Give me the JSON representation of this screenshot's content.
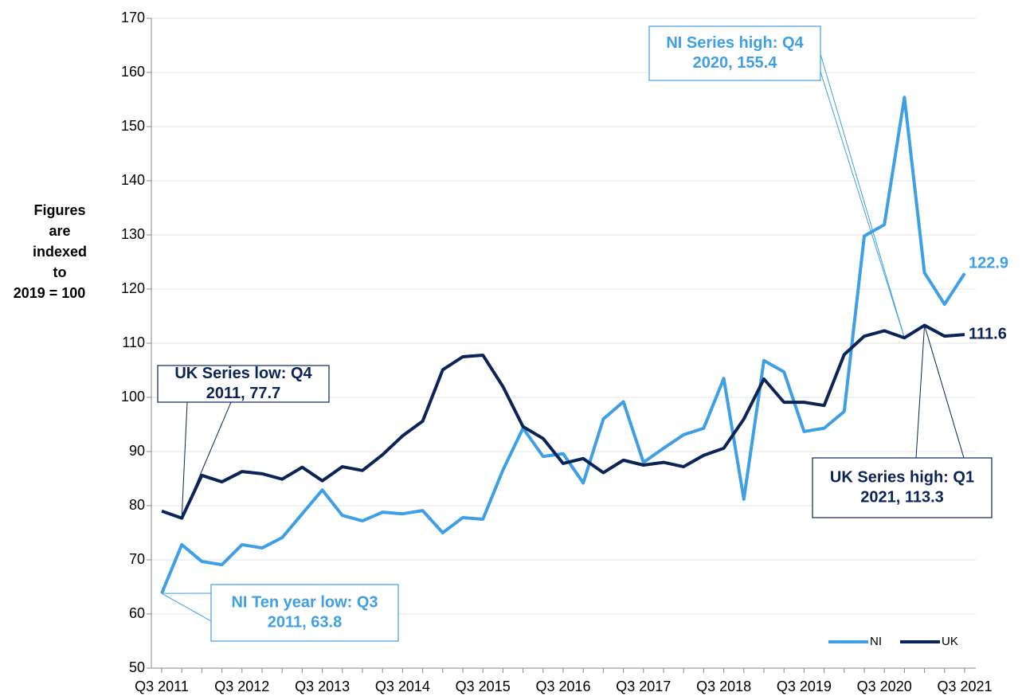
{
  "chart_data": {
    "type": "line",
    "ylabel_lines": [
      "Figures",
      "are",
      "indexed",
      "to",
      "2019 = 100"
    ],
    "categories": [
      "Q3 2011",
      null,
      null,
      null,
      "Q3 2012",
      null,
      null,
      null,
      "Q3 2013",
      null,
      null,
      null,
      "Q3 2014",
      null,
      null,
      null,
      "Q3 2015",
      null,
      null,
      null,
      "Q3 2016",
      null,
      null,
      null,
      "Q3 2017",
      null,
      null,
      null,
      "Q3 2018",
      null,
      null,
      null,
      "Q3 2019",
      null,
      null,
      null,
      "Q3 2020",
      null,
      null,
      null,
      "Q3 2021"
    ],
    "series": [
      {
        "name": "NI",
        "color": "#3f9fe6",
        "values": [
          63.8,
          72.8,
          69.7,
          69.1,
          72.8,
          72.2,
          74.1,
          78.5,
          82.9,
          78.2,
          77.2,
          78.8,
          78.5,
          79.1,
          75.0,
          77.8,
          77.5,
          86.6,
          94.3,
          89.1,
          89.6,
          84.2,
          96.0,
          99.2,
          88.0,
          90.6,
          93.1,
          94.3,
          103.5,
          81.2,
          106.8,
          104.7,
          93.7,
          94.3,
          97.4,
          129.8,
          131.9,
          155.4,
          123.0,
          117.2,
          122.9
        ]
      },
      {
        "name": "UK",
        "color": "#0b2458",
        "values": [
          79.0,
          77.7,
          85.6,
          84.4,
          86.3,
          85.9,
          84.9,
          87.1,
          84.6,
          87.2,
          86.5,
          89.4,
          92.9,
          95.6,
          105.1,
          107.5,
          107.8,
          102.0,
          94.6,
          92.4,
          87.8,
          88.7,
          86.1,
          88.4,
          87.5,
          88.0,
          87.2,
          89.3,
          90.6,
          96.0,
          103.4,
          99.1,
          99.1,
          98.5,
          107.9,
          111.3,
          112.3,
          111.0,
          113.3,
          111.3,
          111.6
        ]
      }
    ],
    "ylim": [
      50,
      170
    ],
    "yticks": [
      50,
      60,
      70,
      80,
      90,
      100,
      110,
      120,
      130,
      140,
      150,
      160,
      170
    ],
    "grid": true,
    "legend": "bottom-right",
    "annotations": [
      {
        "lines": [
          "NI Series high: Q4",
          "2020, 155.4"
        ],
        "color": "#3f9fe6"
      },
      {
        "lines": [
          "UK Series low: Q4",
          "2011, 77.7"
        ],
        "color": "#0b2458"
      },
      {
        "lines": [
          "NI Ten year low: Q3",
          "2011, 63.8"
        ],
        "color": "#3f9fe6"
      },
      {
        "lines": [
          "UK Series high: Q1",
          "2021, 113.3"
        ],
        "color": "#0b2458"
      }
    ]
  }
}
